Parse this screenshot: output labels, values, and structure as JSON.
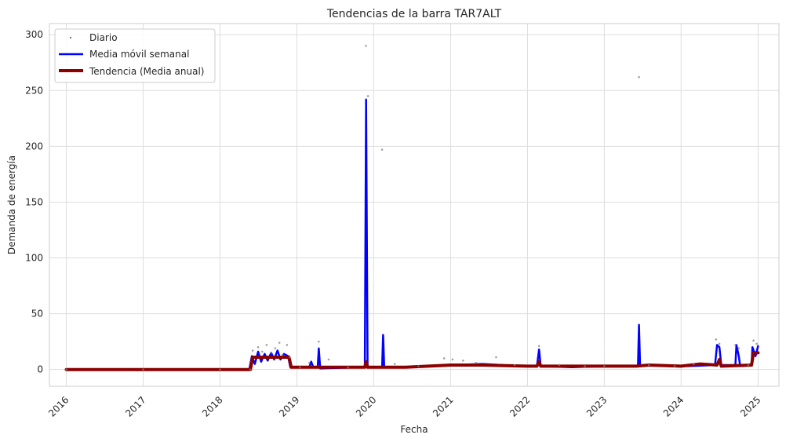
{
  "chart_data": {
    "type": "line",
    "title": "Tendencias de la barra TAR7ALT",
    "xlabel": "Fecha",
    "ylabel": "Demanda de energía",
    "xlim": [
      "2015-10-13",
      "2025-04-10"
    ],
    "ylim": [
      -15,
      310
    ],
    "x_ticks": [
      "2016",
      "2017",
      "2018",
      "2019",
      "2020",
      "2021",
      "2022",
      "2023",
      "2024",
      "2025"
    ],
    "y_ticks": [
      0,
      50,
      100,
      150,
      200,
      250,
      300
    ],
    "grid": true,
    "legend_position": "top-left",
    "series": [
      {
        "name": "Diario",
        "style": "points",
        "color": "#808080",
        "points": [
          [
            "2016-01-01",
            0
          ],
          [
            "2017-01-01",
            0
          ],
          [
            "2018-01-01",
            0
          ],
          [
            "2018-05-25",
            0
          ],
          [
            "2018-06-05",
            17
          ],
          [
            "2018-07-01",
            20
          ],
          [
            "2018-07-20",
            16
          ],
          [
            "2018-08-10",
            22
          ],
          [
            "2018-09-01",
            15
          ],
          [
            "2018-09-20",
            19
          ],
          [
            "2018-10-10",
            24
          ],
          [
            "2018-10-25",
            13
          ],
          [
            "2018-11-15",
            22
          ],
          [
            "2018-11-28",
            11
          ],
          [
            "2019-01-15",
            2
          ],
          [
            "2019-03-01",
            6
          ],
          [
            "2019-04-15",
            25
          ],
          [
            "2019-06-01",
            9
          ],
          [
            "2019-09-01",
            2
          ],
          [
            "2019-11-25",
            290
          ],
          [
            "2019-12-05",
            245
          ],
          [
            "2020-02-10",
            197
          ],
          [
            "2020-04-10",
            5
          ],
          [
            "2020-08-01",
            3
          ],
          [
            "2020-12-01",
            10
          ],
          [
            "2021-01-10",
            9
          ],
          [
            "2021-03-01",
            8
          ],
          [
            "2021-05-01",
            6
          ],
          [
            "2021-08-05",
            11
          ],
          [
            "2021-11-01",
            4
          ],
          [
            "2022-02-25",
            21
          ],
          [
            "2022-06-01",
            4
          ],
          [
            "2022-10-01",
            3
          ],
          [
            "2023-01-01",
            3
          ],
          [
            "2023-06-15",
            262
          ],
          [
            "2023-08-01",
            4
          ],
          [
            "2023-12-01",
            3
          ],
          [
            "2024-03-01",
            5
          ],
          [
            "2024-06-15",
            27
          ],
          [
            "2024-07-01",
            23
          ],
          [
            "2024-09-15",
            22
          ],
          [
            "2024-10-01",
            19
          ],
          [
            "2024-11-15",
            4
          ],
          [
            "2024-12-10",
            26
          ],
          [
            "2024-12-25",
            23
          ]
        ]
      },
      {
        "name": "Media móvil semanal",
        "style": "line",
        "color": "#0000ff",
        "points": [
          [
            "2016-01-01",
            0
          ],
          [
            "2018-05-20",
            0
          ],
          [
            "2018-06-01",
            12
          ],
          [
            "2018-06-15",
            5
          ],
          [
            "2018-07-01",
            16
          ],
          [
            "2018-07-15",
            7
          ],
          [
            "2018-08-01",
            14
          ],
          [
            "2018-08-15",
            8
          ],
          [
            "2018-09-01",
            15
          ],
          [
            "2018-09-15",
            9
          ],
          [
            "2018-10-01",
            17
          ],
          [
            "2018-10-15",
            9
          ],
          [
            "2018-11-01",
            14
          ],
          [
            "2018-11-20",
            12
          ],
          [
            "2018-12-01",
            2
          ],
          [
            "2019-03-01",
            2
          ],
          [
            "2019-03-10",
            7
          ],
          [
            "2019-03-20",
            2
          ],
          [
            "2019-04-10",
            2
          ],
          [
            "2019-04-15",
            19
          ],
          [
            "2019-04-22",
            1
          ],
          [
            "2019-11-20",
            2
          ],
          [
            "2019-11-26",
            242
          ],
          [
            "2019-12-03",
            2
          ],
          [
            "2020-02-10",
            2
          ],
          [
            "2020-02-15",
            31
          ],
          [
            "2020-02-20",
            2
          ],
          [
            "2020-06-01",
            2
          ],
          [
            "2020-10-01",
            3
          ],
          [
            "2021-01-01",
            4
          ],
          [
            "2021-06-01",
            5
          ],
          [
            "2021-12-01",
            3
          ],
          [
            "2022-02-15",
            3
          ],
          [
            "2022-02-25",
            18
          ],
          [
            "2022-03-05",
            3
          ],
          [
            "2022-08-01",
            2
          ],
          [
            "2023-01-01",
            3
          ],
          [
            "2023-06-10",
            3
          ],
          [
            "2023-06-15",
            40
          ],
          [
            "2023-06-20",
            3
          ],
          [
            "2023-09-01",
            4
          ],
          [
            "2024-02-01",
            3
          ],
          [
            "2024-06-10",
            4
          ],
          [
            "2024-06-20",
            22
          ],
          [
            "2024-07-01",
            20
          ],
          [
            "2024-07-10",
            4
          ],
          [
            "2024-09-15",
            4
          ],
          [
            "2024-09-20",
            22
          ],
          [
            "2024-10-01",
            12
          ],
          [
            "2024-10-08",
            3
          ],
          [
            "2024-12-01",
            4
          ],
          [
            "2024-12-05",
            20
          ],
          [
            "2024-12-20",
            12
          ],
          [
            "2025-01-01",
            21
          ]
        ]
      },
      {
        "name": "Tendencia (Media anual)",
        "style": "line",
        "color": "#8b0000",
        "points": [
          [
            "2016-01-01",
            0
          ],
          [
            "2018-05-25",
            0
          ],
          [
            "2018-06-05",
            11
          ],
          [
            "2018-11-25",
            11
          ],
          [
            "2018-12-05",
            2
          ],
          [
            "2019-11-20",
            2
          ],
          [
            "2019-11-26",
            7
          ],
          [
            "2019-12-03",
            2
          ],
          [
            "2020-06-01",
            2
          ],
          [
            "2021-01-01",
            4
          ],
          [
            "2021-06-01",
            4
          ],
          [
            "2022-01-01",
            3
          ],
          [
            "2022-02-15",
            3
          ],
          [
            "2022-02-25",
            7
          ],
          [
            "2022-03-05",
            3
          ],
          [
            "2023-01-01",
            3
          ],
          [
            "2023-06-01",
            3
          ],
          [
            "2023-08-01",
            4
          ],
          [
            "2024-01-01",
            3
          ],
          [
            "2024-04-01",
            5
          ],
          [
            "2024-06-20",
            4
          ],
          [
            "2024-07-01",
            9
          ],
          [
            "2024-07-10",
            3
          ],
          [
            "2024-12-01",
            4
          ],
          [
            "2024-12-10",
            15
          ],
          [
            "2025-01-01",
            15
          ]
        ]
      }
    ]
  }
}
